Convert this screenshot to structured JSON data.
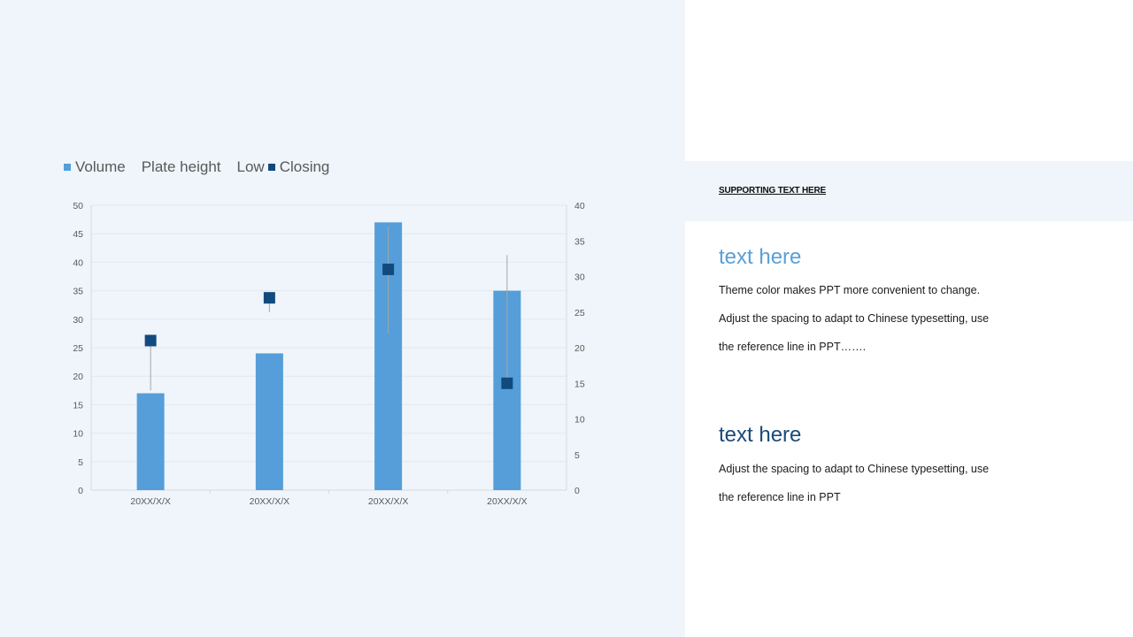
{
  "chart_data": {
    "type": "bar",
    "categories": [
      "20XX/X/X",
      "20XX/X/X",
      "20XX/X/X",
      "20XX/X/X"
    ],
    "legend": [
      "Volume",
      "Plate height",
      "Low",
      "Closing"
    ],
    "series": [
      {
        "name": "Volume",
        "axis": "left",
        "values": [
          17,
          24,
          47,
          35
        ]
      },
      {
        "name": "Plate height",
        "axis": "right",
        "values": [
          21,
          27,
          37,
          33
        ]
      },
      {
        "name": "Low",
        "axis": "right",
        "values": [
          14,
          25,
          22,
          15
        ]
      },
      {
        "name": "Closing",
        "axis": "right",
        "values": [
          21,
          27,
          31,
          15
        ]
      }
    ],
    "y_left": {
      "min": 0,
      "max": 50,
      "step": 5
    },
    "y_right": {
      "min": 0,
      "max": 40,
      "step": 5
    },
    "grid": true,
    "legend_position": "top-left",
    "colors": {
      "volume": "#559ed9",
      "closing": "#124a7e",
      "hilo": "#a6a6a6",
      "grid": "#e3e8ee"
    }
  },
  "side": {
    "supporting": "SUPPORTING TEXT HERE",
    "section1": {
      "title": "text here",
      "lines": [
        "Theme color makes PPT more convenient to change.",
        "Adjust the spacing to adapt to Chinese typesetting, use",
        "the reference line in PPT……."
      ]
    },
    "section2": {
      "title": "text here",
      "lines": [
        "Adjust the spacing to adapt to Chinese typesetting, use",
        "the reference line in PPT"
      ]
    }
  }
}
